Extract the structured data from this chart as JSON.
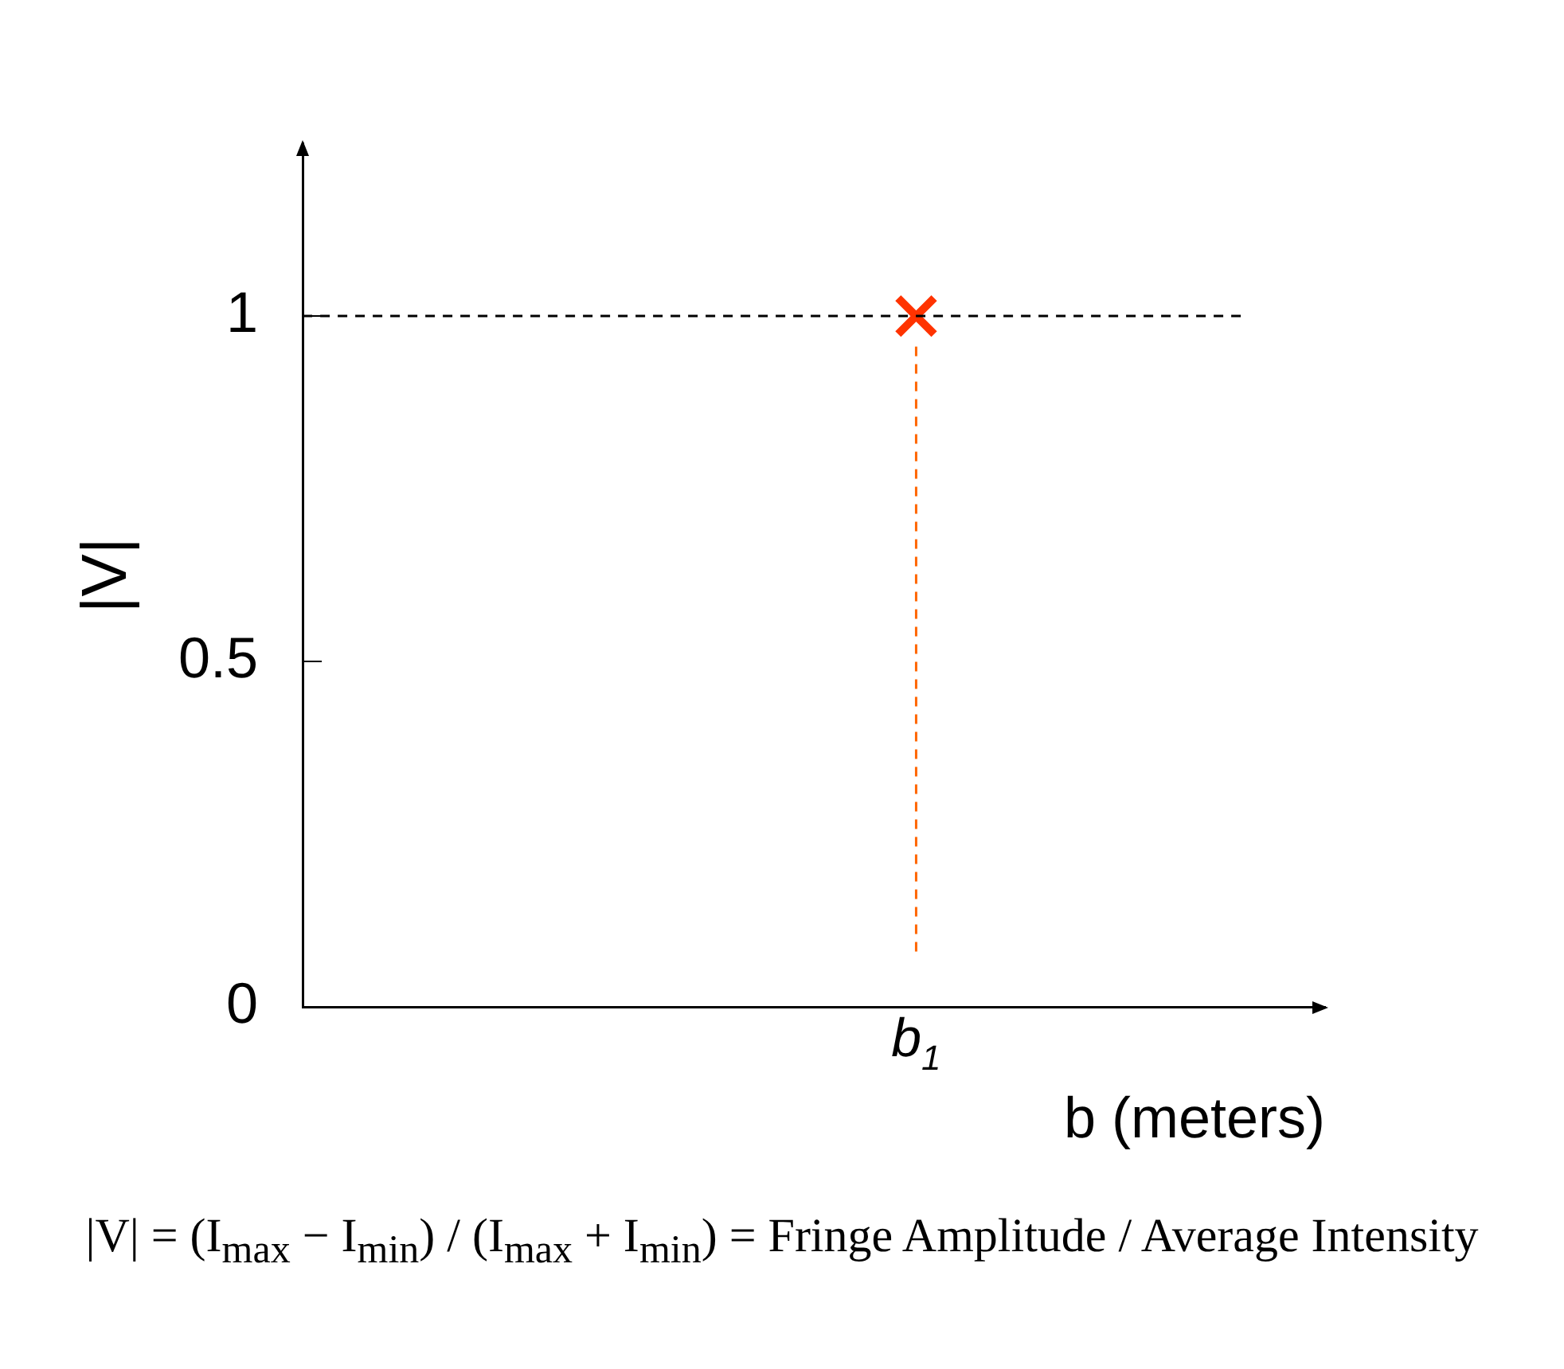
{
  "chart_data": {
    "type": "scatter",
    "xlabel": "b (meters)",
    "ylabel": "|V|",
    "categories": [
      null,
      null,
      null,
      "b$_{1}$",
      null,
      null
    ],
    "series": [
      {
        "color": "#ff3300",
        "values": [
          null,
          null,
          null,
          1,
          null,
          null
        ]
      }
    ],
    "marker": "cross",
    "ylim": [
      0,
      1.25
    ],
    "yticks": [
      0,
      0.5,
      1
    ],
    "ref_lines": [
      {
        "axis": "y",
        "value": 1,
        "color": "#000000",
        "line_style": "dashed"
      },
      {
        "axis": "x",
        "value": "b$_{1}$",
        "color": "#ff6600",
        "line_style": "dashed"
      }
    ],
    "annotations": [
      "|V| = (I$_{max}$ − I$_{min}$) / (I$_{max}$ + I$_{min}$) = Fringe Amplitude / Average Intensity"
    ]
  }
}
